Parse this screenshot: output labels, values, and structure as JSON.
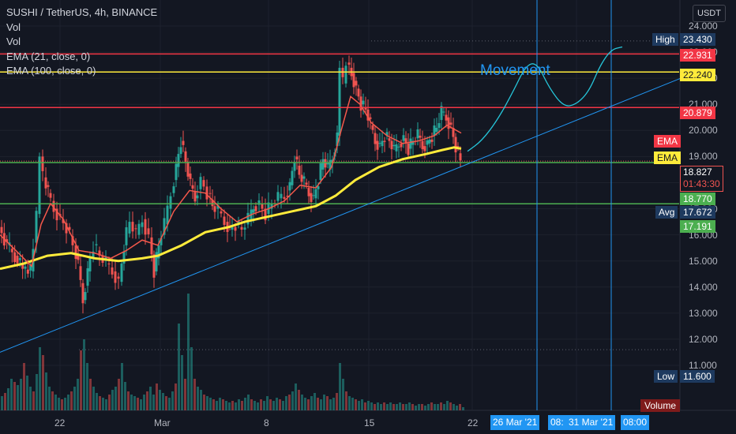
{
  "legend": {
    "title": "SUSHI / TetherUS, 4h, BINANCE",
    "rows": [
      "Vol",
      "Vol",
      "EMA (21, close, 0)",
      "EMA (100, close, 0)"
    ]
  },
  "currency_button": "USDT",
  "annotation": "Movement",
  "price_tags": {
    "high_label": "High",
    "high": "23.430",
    "r1": "22.931",
    "y1": "22.240",
    "r2": "20.879",
    "ema_label1": "EMA",
    "ema_label2": "EMA",
    "last": "18.827",
    "countdown": "01:43:30",
    "g1": "18.770",
    "avg_label": "Avg",
    "avg": "17.672",
    "g2": "17.191",
    "low_label": "Low",
    "low": "11.600",
    "volume_label": "Volume"
  },
  "colors": {
    "background": "#131722",
    "up": "#26a69a",
    "down": "#ef5350",
    "ema21": "#f5584b",
    "ema100": "#ffeb3b",
    "resistance": "#f23645",
    "support": "#4caf50",
    "level_yellow": "#ffeb3b",
    "trendline": "#2196f3"
  },
  "x_axis": {
    "ticks": [
      "22",
      "Mar",
      "8",
      "15",
      "22"
    ],
    "crosshair_labels": [
      "26 Mar '21",
      "08:",
      "31 Mar '21",
      "08:00"
    ]
  },
  "chart_data": {
    "type": "candlestick",
    "title": "SUSHI / TetherUS, 4h, BINANCE",
    "y_axis_ticks": [
      "24.000",
      "23.000",
      "22.000",
      "21.000",
      "20.000",
      "19.000",
      "18.000",
      "17.000",
      "16.000",
      "15.000",
      "14.000",
      "13.000",
      "12.000",
      "11.000"
    ],
    "ylim": [
      10.7,
      24.3
    ],
    "horizontal_levels": [
      {
        "value": 22.931,
        "color": "red"
      },
      {
        "value": 22.24,
        "color": "yellow"
      },
      {
        "value": 20.879,
        "color": "red"
      },
      {
        "value": 18.77,
        "color": "green"
      },
      {
        "value": 17.191,
        "color": "green"
      }
    ],
    "high": 23.43,
    "low": 11.6,
    "average": 17.672,
    "last": 18.827,
    "price_path": [
      [
        0,
        16.3
      ],
      [
        10,
        15.6
      ],
      [
        20,
        15.2
      ],
      [
        30,
        14.7
      ],
      [
        40,
        14.6
      ],
      [
        48,
        16.8
      ],
      [
        52,
        19.0
      ],
      [
        56,
        18.2
      ],
      [
        62,
        17.6
      ],
      [
        70,
        17.0
      ],
      [
        78,
        16.6
      ],
      [
        86,
        16.3
      ],
      [
        94,
        15.6
      ],
      [
        100,
        14.8
      ],
      [
        106,
        13.5
      ],
      [
        112,
        14.6
      ],
      [
        120,
        15.6
      ],
      [
        128,
        15.2
      ],
      [
        136,
        14.9
      ],
      [
        144,
        14.6
      ],
      [
        152,
        14.2
      ],
      [
        158,
        15.6
      ],
      [
        166,
        16.5
      ],
      [
        174,
        16.0
      ],
      [
        182,
        16.6
      ],
      [
        190,
        15.9
      ],
      [
        196,
        14.6
      ],
      [
        202,
        15.6
      ],
      [
        210,
        16.4
      ],
      [
        218,
        17.6
      ],
      [
        224,
        18.6
      ],
      [
        230,
        19.6
      ],
      [
        236,
        18.8
      ],
      [
        242,
        17.9
      ],
      [
        248,
        17.4
      ],
      [
        256,
        18.1
      ],
      [
        264,
        17.6
      ],
      [
        270,
        17.1
      ],
      [
        278,
        16.9
      ],
      [
        286,
        16.5
      ],
      [
        292,
        16.2
      ],
      [
        300,
        16.4
      ],
      [
        308,
        16.2
      ],
      [
        316,
        16.6
      ],
      [
        322,
        17.1
      ],
      [
        330,
        17.2
      ],
      [
        338,
        16.8
      ],
      [
        346,
        17.2
      ],
      [
        354,
        17.4
      ],
      [
        362,
        17.5
      ],
      [
        368,
        17.9
      ],
      [
        374,
        19.0
      ],
      [
        380,
        18.3
      ],
      [
        386,
        18.0
      ],
      [
        392,
        17.6
      ],
      [
        398,
        17.4
      ],
      [
        404,
        18.1
      ],
      [
        410,
        18.9
      ],
      [
        416,
        18.5
      ],
      [
        422,
        19.0
      ],
      [
        428,
        19.8
      ],
      [
        432,
        22.4
      ],
      [
        436,
        21.8
      ],
      [
        440,
        22.6
      ],
      [
        446,
        22.2
      ],
      [
        452,
        21.6
      ],
      [
        458,
        21.0
      ],
      [
        464,
        20.8
      ],
      [
        470,
        20.2
      ],
      [
        476,
        19.6
      ],
      [
        482,
        19.4
      ],
      [
        488,
        19.8
      ],
      [
        494,
        19.6
      ],
      [
        500,
        19.2
      ],
      [
        506,
        19.5
      ],
      [
        512,
        19.7
      ],
      [
        518,
        19.3
      ],
      [
        524,
        19.6
      ],
      [
        530,
        19.8
      ],
      [
        536,
        19.4
      ],
      [
        542,
        19.5
      ],
      [
        548,
        19.8
      ],
      [
        554,
        20.1
      ],
      [
        560,
        20.7
      ],
      [
        566,
        20.5
      ],
      [
        572,
        20.1
      ],
      [
        578,
        19.4
      ],
      [
        584,
        18.85
      ]
    ],
    "ema21_path": [
      [
        0,
        16.0
      ],
      [
        20,
        15.4
      ],
      [
        40,
        14.8
      ],
      [
        52,
        16.4
      ],
      [
        64,
        17.2
      ],
      [
        80,
        16.6
      ],
      [
        100,
        15.4
      ],
      [
        120,
        15.3
      ],
      [
        140,
        15.1
      ],
      [
        160,
        15.4
      ],
      [
        180,
        15.8
      ],
      [
        200,
        15.6
      ],
      [
        220,
        16.9
      ],
      [
        240,
        17.7
      ],
      [
        260,
        17.6
      ],
      [
        280,
        17.0
      ],
      [
        300,
        16.5
      ],
      [
        320,
        16.8
      ],
      [
        340,
        17.0
      ],
      [
        360,
        17.3
      ],
      [
        380,
        17.9
      ],
      [
        400,
        17.8
      ],
      [
        420,
        18.6
      ],
      [
        432,
        20.0
      ],
      [
        444,
        21.3
      ],
      [
        456,
        21.0
      ],
      [
        470,
        20.3
      ],
      [
        490,
        19.8
      ],
      [
        510,
        19.5
      ],
      [
        530,
        19.6
      ],
      [
        550,
        19.8
      ],
      [
        566,
        20.2
      ],
      [
        584,
        19.9
      ]
    ],
    "ema100_path": [
      [
        0,
        14.7
      ],
      [
        30,
        14.9
      ],
      [
        60,
        15.2
      ],
      [
        90,
        15.3
      ],
      [
        120,
        15.1
      ],
      [
        150,
        15.0
      ],
      [
        180,
        15.1
      ],
      [
        200,
        15.2
      ],
      [
        230,
        15.6
      ],
      [
        260,
        16.1
      ],
      [
        290,
        16.3
      ],
      [
        310,
        16.5
      ],
      [
        340,
        16.7
      ],
      [
        370,
        16.9
      ],
      [
        400,
        17.1
      ],
      [
        425,
        17.5
      ],
      [
        450,
        18.1
      ],
      [
        480,
        18.6
      ],
      [
        510,
        18.9
      ],
      [
        540,
        19.1
      ],
      [
        560,
        19.25
      ],
      [
        575,
        19.35
      ],
      [
        584,
        19.3
      ]
    ],
    "trendline": {
      "from": [
        0,
        11.5
      ],
      "to": [
        862,
        22.0
      ]
    },
    "projection_path": [
      [
        592,
        19.2
      ],
      [
        610,
        19.6
      ],
      [
        630,
        20.4
      ],
      [
        650,
        21.5
      ],
      [
        666,
        22.5
      ],
      [
        680,
        22.6
      ],
      [
        696,
        21.6
      ],
      [
        714,
        20.9
      ],
      [
        730,
        21.0
      ],
      [
        746,
        21.5
      ],
      [
        760,
        22.5
      ],
      [
        774,
        23.1
      ],
      [
        788,
        23.2
      ]
    ],
    "volume_bars": [
      [
        0,
        18
      ],
      [
        4,
        22
      ],
      [
        8,
        28
      ],
      [
        12,
        40
      ],
      [
        16,
        36
      ],
      [
        20,
        32
      ],
      [
        24,
        40
      ],
      [
        28,
        60
      ],
      [
        32,
        44
      ],
      [
        36,
        30
      ],
      [
        40,
        24
      ],
      [
        44,
        46
      ],
      [
        48,
        80
      ],
      [
        52,
        70
      ],
      [
        56,
        48
      ],
      [
        60,
        30
      ],
      [
        64,
        24
      ],
      [
        68,
        20
      ],
      [
        72,
        16
      ],
      [
        76,
        14
      ],
      [
        80,
        16
      ],
      [
        84,
        20
      ],
      [
        88,
        24
      ],
      [
        92,
        30
      ],
      [
        96,
        40
      ],
      [
        100,
        76
      ],
      [
        104,
        90
      ],
      [
        108,
        60
      ],
      [
        112,
        40
      ],
      [
        116,
        30
      ],
      [
        120,
        22
      ],
      [
        124,
        18
      ],
      [
        128,
        16
      ],
      [
        132,
        14
      ],
      [
        136,
        20
      ],
      [
        140,
        26
      ],
      [
        144,
        30
      ],
      [
        148,
        40
      ],
      [
        152,
        60
      ],
      [
        156,
        36
      ],
      [
        160,
        24
      ],
      [
        164,
        20
      ],
      [
        168,
        18
      ],
      [
        172,
        16
      ],
      [
        176,
        14
      ],
      [
        180,
        20
      ],
      [
        184,
        24
      ],
      [
        188,
        30
      ],
      [
        192,
        20
      ],
      [
        196,
        34
      ],
      [
        200,
        26
      ],
      [
        204,
        22
      ],
      [
        208,
        18
      ],
      [
        212,
        16
      ],
      [
        216,
        24
      ],
      [
        220,
        34
      ],
      [
        224,
        110
      ],
      [
        228,
        70
      ],
      [
        232,
        40
      ],
      [
        236,
        148
      ],
      [
        240,
        80
      ],
      [
        244,
        40
      ],
      [
        248,
        30
      ],
      [
        252,
        26
      ],
      [
        256,
        20
      ],
      [
        260,
        18
      ],
      [
        264,
        16
      ],
      [
        268,
        14
      ],
      [
        272,
        12
      ],
      [
        276,
        16
      ],
      [
        280,
        14
      ],
      [
        284,
        12
      ],
      [
        288,
        10
      ],
      [
        292,
        12
      ],
      [
        296,
        10
      ],
      [
        300,
        14
      ],
      [
        304,
        12
      ],
      [
        308,
        16
      ],
      [
        312,
        20
      ],
      [
        316,
        14
      ],
      [
        320,
        12
      ],
      [
        324,
        10
      ],
      [
        328,
        14
      ],
      [
        332,
        12
      ],
      [
        336,
        18
      ],
      [
        340,
        14
      ],
      [
        344,
        12
      ],
      [
        348,
        16
      ],
      [
        352,
        14
      ],
      [
        356,
        12
      ],
      [
        360,
        18
      ],
      [
        364,
        20
      ],
      [
        368,
        24
      ],
      [
        372,
        34
      ],
      [
        376,
        26
      ],
      [
        380,
        20
      ],
      [
        384,
        16
      ],
      [
        388,
        14
      ],
      [
        392,
        18
      ],
      [
        396,
        22
      ],
      [
        400,
        16
      ],
      [
        404,
        14
      ],
      [
        408,
        20
      ],
      [
        412,
        18
      ],
      [
        416,
        14
      ],
      [
        420,
        16
      ],
      [
        424,
        22
      ],
      [
        428,
        60
      ],
      [
        432,
        40
      ],
      [
        436,
        24
      ],
      [
        440,
        18
      ],
      [
        444,
        16
      ],
      [
        448,
        14
      ],
      [
        452,
        12
      ],
      [
        456,
        14
      ],
      [
        460,
        10
      ],
      [
        464,
        12
      ],
      [
        468,
        10
      ],
      [
        472,
        8
      ],
      [
        476,
        10
      ],
      [
        480,
        8
      ],
      [
        484,
        10
      ],
      [
        488,
        8
      ],
      [
        492,
        10
      ],
      [
        496,
        8
      ],
      [
        500,
        8
      ],
      [
        504,
        10
      ],
      [
        508,
        8
      ],
      [
        512,
        8
      ],
      [
        516,
        10
      ],
      [
        520,
        8
      ],
      [
        524,
        6
      ],
      [
        528,
        8
      ],
      [
        532,
        8
      ],
      [
        536,
        6
      ],
      [
        540,
        8
      ],
      [
        544,
        10
      ],
      [
        548,
        8
      ],
      [
        552,
        8
      ],
      [
        556,
        10
      ],
      [
        560,
        8
      ],
      [
        564,
        12
      ],
      [
        568,
        10
      ],
      [
        572,
        8
      ],
      [
        576,
        6
      ],
      [
        580,
        8
      ],
      [
        584,
        4
      ]
    ]
  }
}
